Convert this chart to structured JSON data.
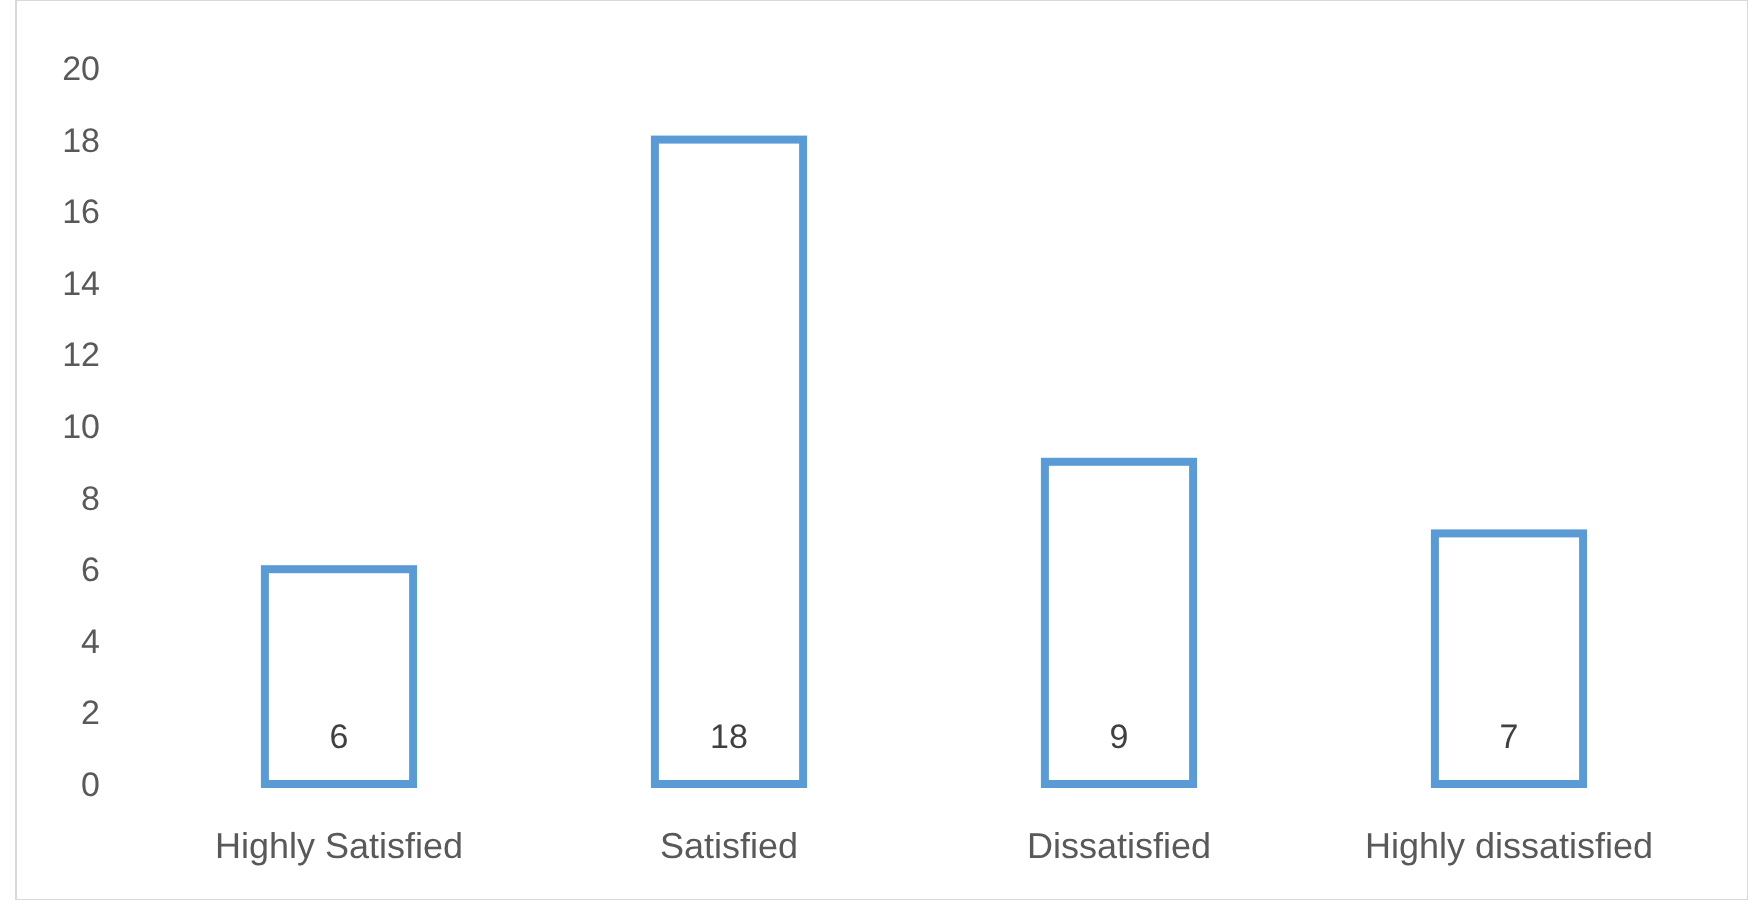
{
  "chart_data": {
    "type": "bar",
    "categories": [
      "Highly Satisfied",
      "Satisfied",
      "Dissatisfied",
      "Highly dissatisfied"
    ],
    "values": [
      6,
      18,
      9,
      7
    ],
    "color": "#5b9bd5",
    "ylim": [
      0,
      20
    ],
    "yticks": [
      0,
      2,
      4,
      6,
      8,
      10,
      12,
      14,
      16,
      18,
      20
    ],
    "data_labels": true
  }
}
